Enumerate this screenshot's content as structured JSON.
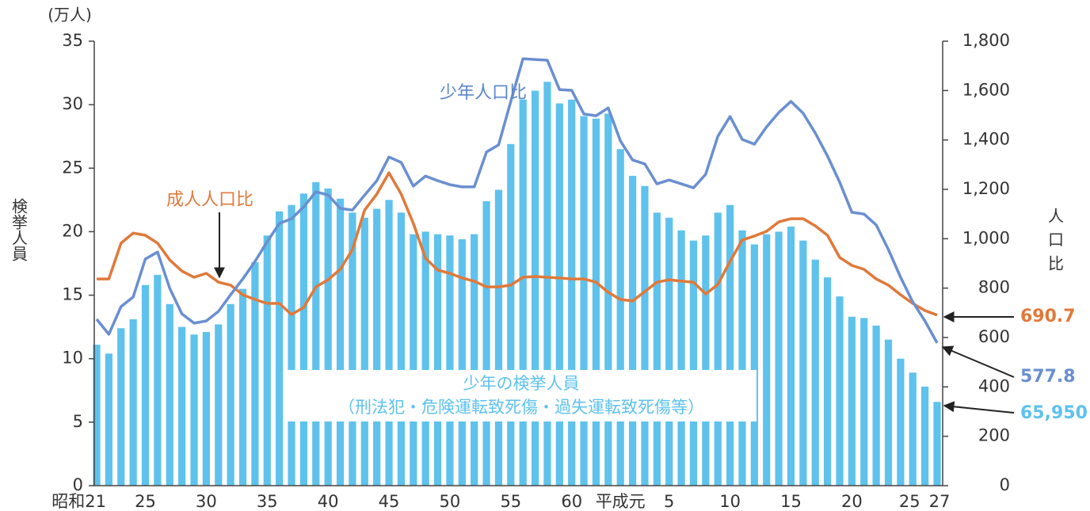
{
  "chart_data": {
    "type": "bar_line",
    "y_unit_label": "(万人)",
    "ylabel": "検挙人員",
    "y2label": "人口比",
    "categories": [
      "昭和21",
      null,
      null,
      null,
      "25",
      null,
      null,
      null,
      null,
      "30",
      null,
      null,
      null,
      null,
      "35",
      null,
      null,
      null,
      null,
      "40",
      null,
      null,
      null,
      null,
      "45",
      null,
      null,
      null,
      null,
      "50",
      null,
      null,
      null,
      null,
      "55",
      null,
      null,
      null,
      null,
      "60",
      null,
      null,
      null,
      "平成元",
      null,
      null,
      null,
      "5",
      null,
      null,
      null,
      null,
      "10",
      null,
      null,
      null,
      null,
      "15",
      null,
      null,
      null,
      null,
      "20",
      null,
      null,
      null,
      null,
      "25",
      null,
      "27"
    ],
    "ylim": [
      0,
      35
    ],
    "yticks": [
      0,
      5,
      10,
      15,
      20,
      25,
      30,
      35
    ],
    "y2lim": [
      0,
      1800
    ],
    "y2ticks": [
      0,
      200,
      400,
      600,
      800,
      {
        "value": 1000,
        "label": "1,000"
      },
      {
        "value": 1200,
        "label": "1,200"
      },
      {
        "value": 1400,
        "label": "1,400"
      },
      {
        "value": 1600,
        "label": "1,600"
      },
      {
        "value": 1800,
        "label": "1,800"
      }
    ],
    "bar_note": "（刑法犯・危険運転致死傷・過失運転致死傷等）",
    "series": [
      {
        "name": "少年の検挙人員",
        "type": "bar",
        "color": "#5ec2ec",
        "values": [
          11.1,
          10.4,
          12.4,
          13.1,
          15.8,
          16.6,
          14.3,
          12.5,
          11.9,
          12.1,
          12.7,
          14.3,
          15.5,
          17.6,
          19.7,
          21.6,
          22.1,
          23.0,
          23.9,
          23.4,
          22.6,
          21.5,
          21.1,
          21.8,
          22.5,
          21.5,
          19.8,
          20.0,
          19.8,
          19.7,
          19.4,
          19.8,
          22.4,
          23.3,
          26.9,
          30.4,
          31.1,
          31.8,
          30.1,
          30.4,
          29.1,
          28.9,
          29.3,
          26.5,
          24.4,
          23.6,
          21.5,
          21.1,
          20.1,
          19.3,
          19.7,
          21.5,
          22.1,
          20.1,
          19.0,
          19.8,
          20.0,
          20.4,
          19.3,
          17.8,
          16.4,
          14.9,
          13.3,
          13.2,
          12.6,
          11.5,
          10.0,
          8.9,
          7.8,
          6.595
        ],
        "value_labels": [
          null,
          null,
          null,
          null,
          null,
          null,
          null,
          null,
          null,
          null,
          null,
          null,
          null,
          null,
          null,
          null,
          null,
          null,
          null,
          null,
          null,
          null,
          null,
          null,
          null,
          null,
          null,
          null,
          null,
          null,
          null,
          null,
          null,
          null,
          null,
          null,
          null,
          null,
          null,
          null,
          null,
          null,
          null,
          null,
          null,
          null,
          null,
          null,
          null,
          null,
          null,
          null,
          null,
          null,
          null,
          null,
          null,
          null,
          null,
          null,
          null,
          null,
          null,
          null,
          null,
          null,
          null,
          null,
          null,
          "65,950"
        ]
      },
      {
        "name": "成人人口比",
        "type": "line",
        "axis": "y2",
        "color": "#e0793a",
        "values": [
          837,
          837,
          982,
          1023,
          1014,
          982,
          914,
          869,
          844,
          860,
          824,
          812,
          773,
          754,
          738,
          738,
          693,
          722,
          805,
          834,
          876,
          956,
          1116,
          1181,
          1267,
          1181,
          1062,
          921,
          873,
          860,
          841,
          828,
          805,
          805,
          812,
          844,
          847,
          844,
          841,
          837,
          837,
          824,
          783,
          754,
          748,
          786,
          824,
          834,
          828,
          824,
          776,
          815,
          908,
          995,
          1011,
          1030,
          1068,
          1081,
          1081,
          1052,
          1014,
          924,
          892,
          876,
          837,
          812,
          773,
          738,
          709,
          690.7
        ]
      },
      {
        "name": "少年人口比",
        "type": "line",
        "axis": "y2",
        "color": "#6a8fd0",
        "values": [
          674,
          613,
          725,
          764,
          918,
          946,
          799,
          696,
          658,
          667,
          706,
          773,
          837,
          908,
          988,
          1062,
          1081,
          1129,
          1190,
          1177,
          1123,
          1116,
          1177,
          1235,
          1331,
          1309,
          1213,
          1254,
          1235,
          1219,
          1210,
          1210,
          1351,
          1380,
          1556,
          1729,
          1726,
          1723,
          1604,
          1601,
          1505,
          1498,
          1530,
          1396,
          1319,
          1303,
          1222,
          1238,
          1222,
          1206,
          1261,
          1415,
          1495,
          1402,
          1383,
          1453,
          1511,
          1556,
          1508,
          1428,
          1335,
          1229,
          1107,
          1100,
          1056,
          956,
          844,
          744,
          667,
          577.8
        ]
      }
    ]
  }
}
